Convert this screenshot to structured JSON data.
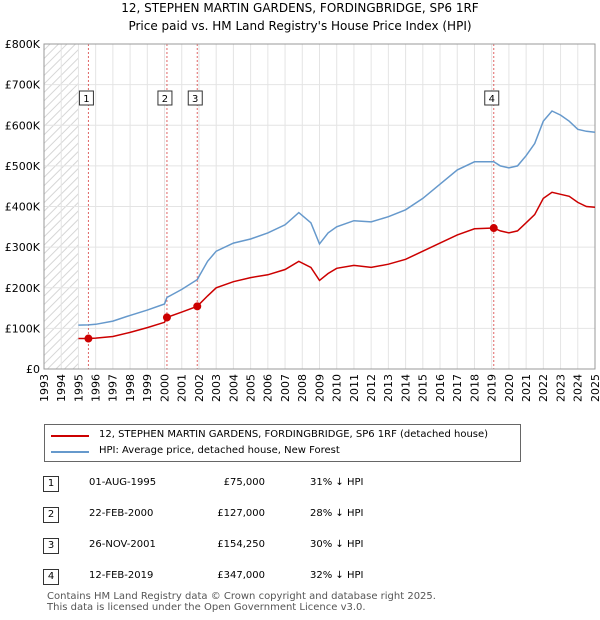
{
  "chart_data": {
    "type": "line",
    "title": "12, STEPHEN MARTIN GARDENS, FORDINGBRIDGE, SP6 1RF",
    "subtitle": "Price paid vs. HM Land Registry's House Price Index (HPI)",
    "xlabel": "",
    "ylabel": "",
    "xlim": [
      1993,
      2025
    ],
    "ylim": [
      0,
      800000
    ],
    "y_ticks": [
      0,
      100000,
      200000,
      300000,
      400000,
      500000,
      600000,
      700000,
      800000
    ],
    "y_tick_labels": [
      "£0",
      "£100K",
      "£200K",
      "£300K",
      "£400K",
      "£500K",
      "£600K",
      "£700K",
      "£800K"
    ],
    "x_ticks": [
      1993,
      1994,
      1995,
      1996,
      1997,
      1998,
      1999,
      2000,
      2001,
      2002,
      2003,
      2004,
      2005,
      2006,
      2007,
      2008,
      2009,
      2010,
      2011,
      2012,
      2013,
      2014,
      2015,
      2016,
      2017,
      2018,
      2019,
      2020,
      2021,
      2022,
      2023,
      2024,
      2025
    ],
    "grid": true,
    "hatch_region": [
      1993,
      1995.0
    ],
    "series": [
      {
        "name": "12, STEPHEN MARTIN GARDENS, FORDINGBRIDGE, SP6 1RF (detached house)",
        "color": "#cc0000",
        "x": [
          1995.0,
          1995.58,
          1996.0,
          1997.0,
          1998.0,
          1999.0,
          2000.0,
          2000.14,
          2001.0,
          2001.9,
          2002.5,
          2003.0,
          2004.0,
          2005.0,
          2006.0,
          2007.0,
          2007.8,
          2008.5,
          2009.0,
          2009.5,
          2010.0,
          2011.0,
          2012.0,
          2013.0,
          2014.0,
          2015.0,
          2016.0,
          2017.0,
          2018.0,
          2019.12,
          2019.5,
          2020.0,
          2020.5,
          2021.0,
          2021.5,
          2022.0,
          2022.5,
          2023.0,
          2023.5,
          2024.0,
          2024.5,
          2025.0
        ],
        "y": [
          75000,
          75000,
          76000,
          80000,
          90000,
          102000,
          115000,
          127000,
          140000,
          154250,
          180000,
          200000,
          215000,
          225000,
          232000,
          245000,
          265000,
          250000,
          218000,
          235000,
          248000,
          255000,
          250000,
          258000,
          270000,
          290000,
          310000,
          330000,
          345000,
          347000,
          340000,
          335000,
          340000,
          360000,
          380000,
          420000,
          435000,
          430000,
          425000,
          410000,
          400000,
          398000
        ]
      },
      {
        "name": "HPI: Average price, detached house, New Forest",
        "color": "#6699cc",
        "x": [
          1995.0,
          1995.58,
          1996.0,
          1997.0,
          1998.0,
          1999.0,
          2000.0,
          2000.14,
          2001.0,
          2001.9,
          2002.5,
          2003.0,
          2004.0,
          2005.0,
          2006.0,
          2007.0,
          2007.8,
          2008.5,
          2009.0,
          2009.5,
          2010.0,
          2011.0,
          2012.0,
          2013.0,
          2014.0,
          2015.0,
          2016.0,
          2017.0,
          2018.0,
          2019.12,
          2019.5,
          2020.0,
          2020.5,
          2021.0,
          2021.5,
          2022.0,
          2022.5,
          2023.0,
          2023.5,
          2024.0,
          2024.5,
          2025.0
        ],
        "y": [
          108000,
          108500,
          110000,
          118000,
          132000,
          145000,
          160000,
          176000,
          196000,
          220000,
          265000,
          290000,
          310000,
          320000,
          335000,
          355000,
          385000,
          360000,
          308000,
          335000,
          350000,
          365000,
          362000,
          375000,
          392000,
          420000,
          455000,
          490000,
          510000,
          510000,
          500000,
          495000,
          500000,
          525000,
          555000,
          610000,
          635000,
          625000,
          610000,
          590000,
          585000,
          583000
        ]
      }
    ],
    "sales": [
      {
        "label": "1",
        "x": 1995.58,
        "price": 75000
      },
      {
        "label": "2",
        "x": 2000.14,
        "price": 127000
      },
      {
        "label": "3",
        "x": 2001.9,
        "price": 154250
      },
      {
        "label": "4",
        "x": 2019.12,
        "price": 347000
      }
    ],
    "legend_position": "below",
    "legend": [
      "12, STEPHEN MARTIN GARDENS, FORDINGBRIDGE, SP6 1RF (detached house)",
      "HPI: Average price, detached house, New Forest"
    ]
  },
  "transactions": [
    {
      "num": "1",
      "date": "01-AUG-1995",
      "price": "£75,000",
      "hpi": "31% ↓ HPI"
    },
    {
      "num": "2",
      "date": "22-FEB-2000",
      "price": "£127,000",
      "hpi": "28% ↓ HPI"
    },
    {
      "num": "3",
      "date": "26-NOV-2001",
      "price": "£154,250",
      "hpi": "30% ↓ HPI"
    },
    {
      "num": "4",
      "date": "12-FEB-2019",
      "price": "£347,000",
      "hpi": "32% ↓ HPI"
    }
  ],
  "footer": {
    "line1": "Contains HM Land Registry data © Crown copyright and database right 2025.",
    "line2": "This data is licensed under the Open Government Licence v3.0."
  }
}
